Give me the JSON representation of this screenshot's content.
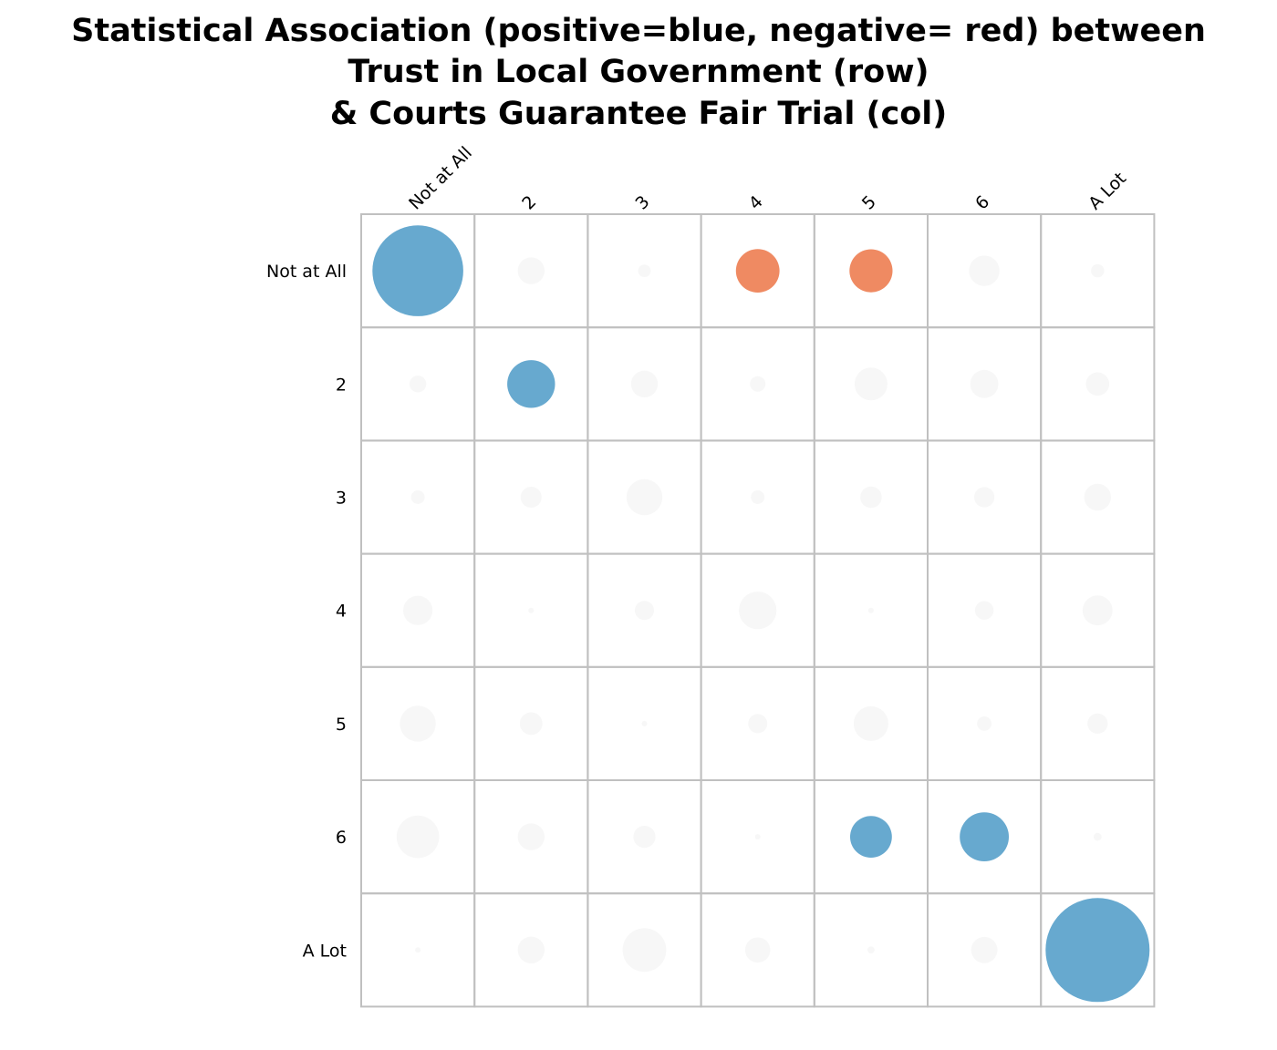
{
  "chart_data": {
    "type": "heatmap",
    "title_lines": [
      "Statistical Association (positive=blue, negative= red) between",
      "Trust in Local Government (row)",
      "& Courts Guarantee Fair Trial (col)"
    ],
    "row_labels": [
      "Not at All",
      "2",
      "3",
      "4",
      "5",
      "6",
      "A Lot"
    ],
    "col_labels": [
      "Not at All",
      "2",
      "3",
      "4",
      "5",
      "6",
      "A Lot"
    ],
    "values": [
      [
        15.2,
        4.5,
        2.1,
        -7.3,
        -7.2,
        5.1,
        2.2
      ],
      [
        2.8,
        8.0,
        4.5,
        2.6,
        5.5,
        4.7,
        3.9
      ],
      [
        2.3,
        3.5,
        6.0,
        2.3,
        3.6,
        3.4,
        4.5
      ],
      [
        4.9,
        0.5,
        3.2,
        6.3,
        0.6,
        3.1,
        5.0
      ],
      [
        6.0,
        3.8,
        0.9,
        3.2,
        5.8,
        2.4,
        3.4
      ],
      [
        7.1,
        4.5,
        3.7,
        0.4,
        7.0,
        8.2,
        1.3
      ],
      [
        0.8,
        4.5,
        7.3,
        4.2,
        1.2,
        4.4,
        17.4
      ]
    ],
    "significant": [
      [
        true,
        false,
        false,
        true,
        true,
        false,
        false
      ],
      [
        false,
        true,
        false,
        false,
        false,
        false,
        false
      ],
      [
        false,
        false,
        false,
        false,
        false,
        false,
        false
      ],
      [
        false,
        false,
        false,
        false,
        false,
        false,
        false
      ],
      [
        false,
        false,
        false,
        false,
        false,
        false,
        false
      ],
      [
        false,
        false,
        false,
        false,
        true,
        true,
        false
      ],
      [
        false,
        false,
        false,
        false,
        false,
        false,
        true
      ]
    ],
    "colors": {
      "positive": "#67a9cf",
      "negative": "#ef8a62",
      "neutral": "#f7f7f7",
      "grid": "#c0c0c0"
    },
    "legend": "none",
    "grid": true
  }
}
